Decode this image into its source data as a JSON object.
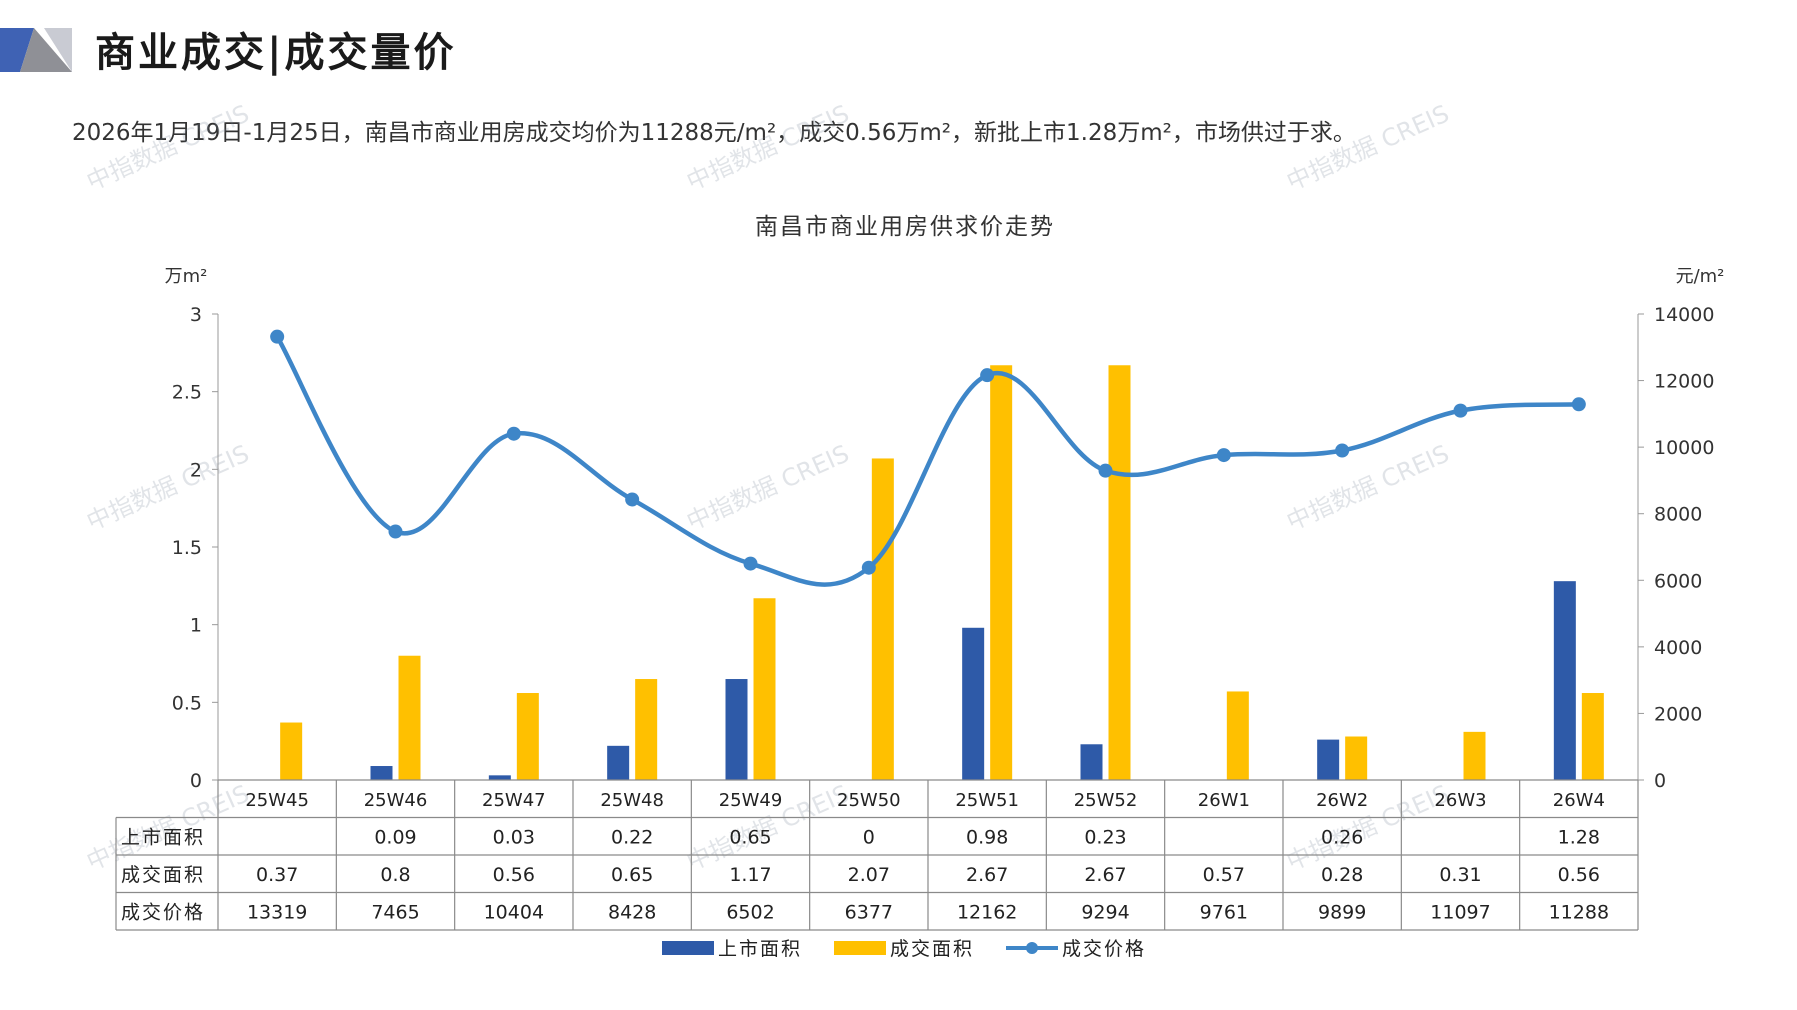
{
  "header": {
    "title": "商业成交|成交量价",
    "summary": "2026年1月19日-1月25日，南昌市商业用房成交均价为11288元/m²，成交0.56万m²，新批上市1.28万m²，市场供过于求。"
  },
  "watermark_text": "中指数据 CREIS",
  "colors": {
    "supply": "#2E5AA8",
    "deal_area": "#FFC000",
    "price_line": "#3E86C8",
    "logo_blue": "#3F62B4",
    "logo_grey": "#8F9096"
  },
  "chart_data": {
    "type": "bar",
    "title": "南昌市商业用房供求价走势",
    "left_unit": "万m²",
    "right_unit": "元/m²",
    "categories": [
      "25W45",
      "25W46",
      "25W47",
      "25W48",
      "25W49",
      "25W50",
      "25W51",
      "25W52",
      "26W1",
      "26W2",
      "26W3",
      "26W4"
    ],
    "ylim_left": [
      0,
      3
    ],
    "left_ticks": [
      "0",
      "0.5",
      "1",
      "1.5",
      "2",
      "2.5",
      "3"
    ],
    "ylim_right": [
      0,
      14000
    ],
    "right_ticks": [
      "0",
      "2000",
      "4000",
      "6000",
      "8000",
      "10000",
      "12000",
      "14000"
    ],
    "series": [
      {
        "name": "上市面积",
        "type": "bar",
        "axis": "left",
        "values": [
          null,
          0.09,
          0.03,
          0.22,
          0.65,
          0,
          0.98,
          0.23,
          null,
          0.26,
          null,
          1.28
        ],
        "labels": [
          "",
          "0.09",
          "0.03",
          "0.22",
          "0.65",
          "0",
          "0.98",
          "0.23",
          "",
          "0.26",
          "",
          "1.28"
        ]
      },
      {
        "name": "成交面积",
        "type": "bar",
        "axis": "left",
        "values": [
          0.37,
          0.8,
          0.56,
          0.65,
          1.17,
          2.07,
          2.67,
          2.67,
          0.57,
          0.28,
          0.31,
          0.56
        ],
        "labels": [
          "0.37",
          "0.8",
          "0.56",
          "0.65",
          "1.17",
          "2.07",
          "2.67",
          "2.67",
          "0.57",
          "0.28",
          "0.31",
          "0.56"
        ]
      },
      {
        "name": "成交价格",
        "type": "line",
        "axis": "right",
        "values": [
          13319,
          7465,
          10404,
          8428,
          6502,
          6377,
          12162,
          9294,
          9761,
          9899,
          11097,
          11288
        ],
        "labels": [
          "13319",
          "7465",
          "10404",
          "8428",
          "6502",
          "6377",
          "12162",
          "9294",
          "9761",
          "9899",
          "11097",
          "11288"
        ]
      }
    ],
    "legend_position": "bottom",
    "grid": false
  }
}
